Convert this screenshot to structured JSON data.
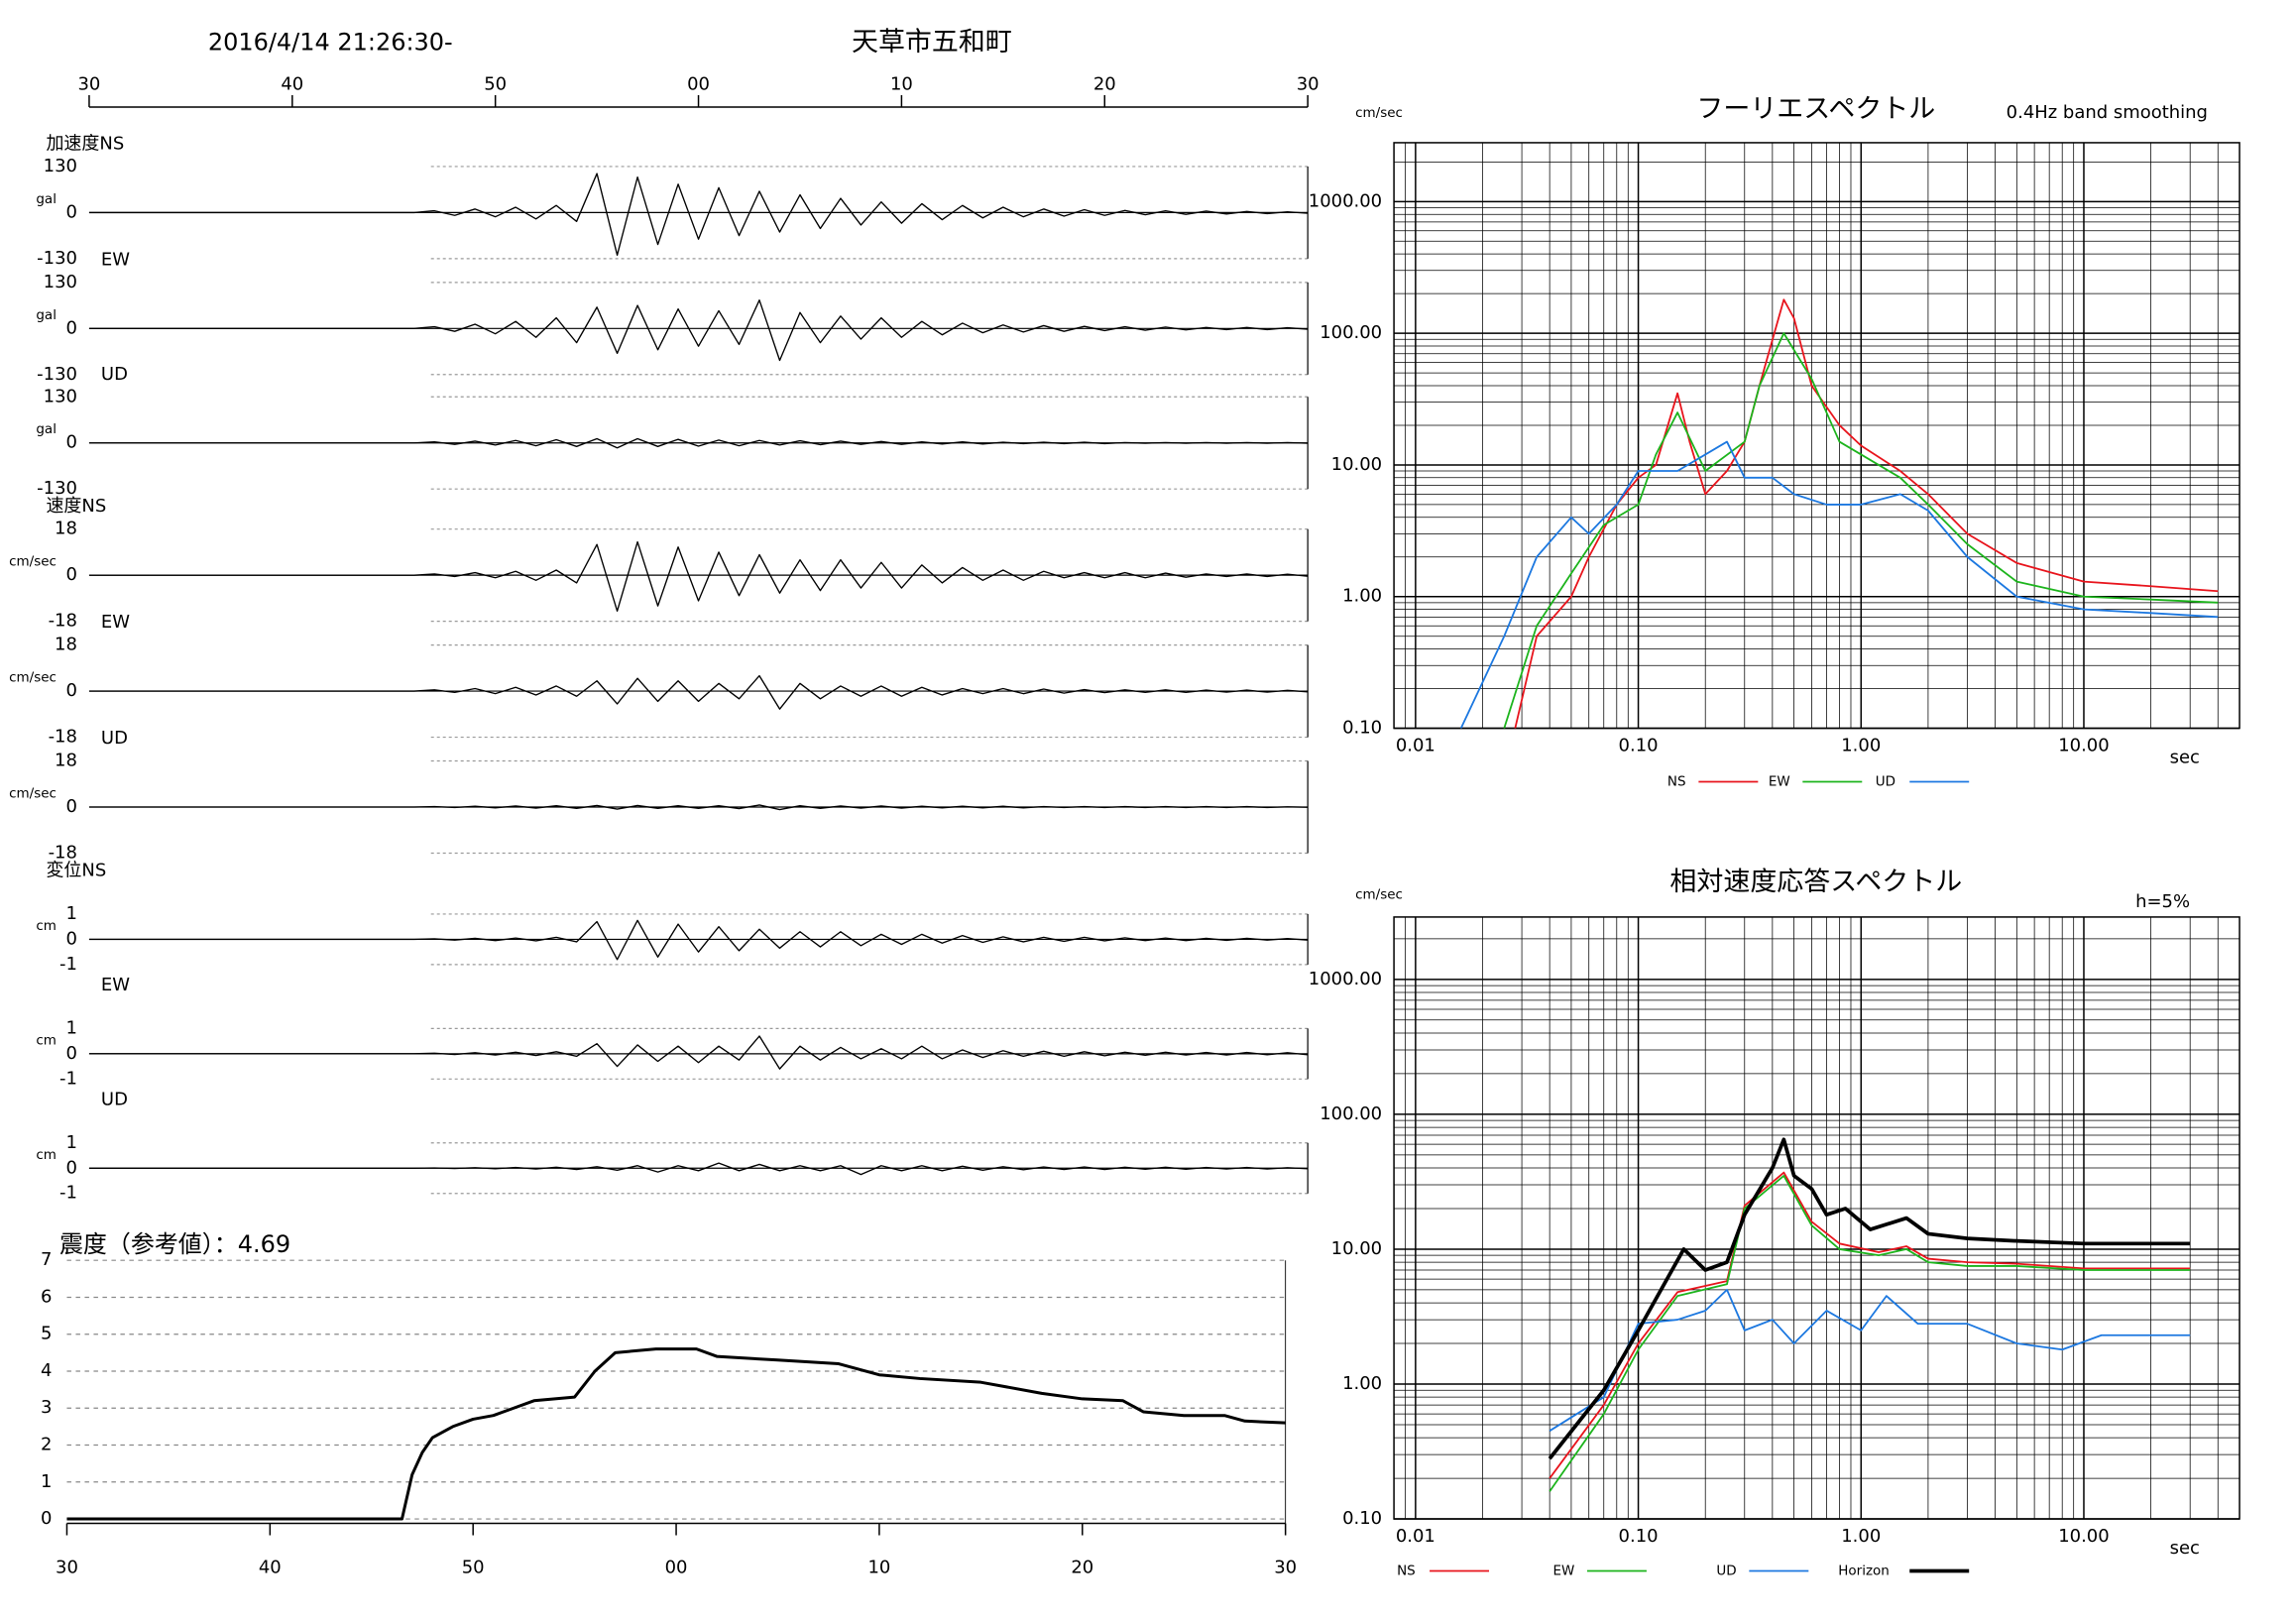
{
  "chart_data": [
    {
      "type": "waveform",
      "title": "天草市五和町",
      "subtitle": "2016/4/14 21:26:30-",
      "xlim": [
        0,
        60
      ],
      "xticks": [
        {
          "value": 0,
          "label": "30"
        },
        {
          "value": 10,
          "label": "40"
        },
        {
          "value": 20,
          "label": "50"
        },
        {
          "value": 30,
          "label": "00"
        },
        {
          "value": 40,
          "label": "10"
        },
        {
          "value": 50,
          "label": "20"
        },
        {
          "value": 60,
          "label": "30"
        }
      ],
      "x": [
        0,
        16,
        17,
        18,
        19,
        20,
        21,
        22,
        23,
        24,
        25,
        26,
        27,
        28,
        29,
        30,
        31,
        32,
        33,
        34,
        35,
        36,
        37,
        38,
        39,
        40,
        41,
        42,
        43,
        44,
        45,
        46,
        47,
        48,
        49,
        50,
        51,
        52,
        53,
        54,
        55,
        56,
        57,
        58,
        59,
        60
      ],
      "panels": [
        {
          "name": "加速度NS",
          "unit": "gal",
          "ylim": [
            -130,
            130
          ],
          "yticks": [
            -130,
            0,
            130
          ],
          "values": [
            0,
            0,
            5,
            -8,
            10,
            -12,
            15,
            -18,
            20,
            -25,
            110,
            -120,
            100,
            -90,
            80,
            -75,
            70,
            -65,
            60,
            -55,
            50,
            -45,
            40,
            -35,
            30,
            -30,
            25,
            -20,
            20,
            -15,
            15,
            -12,
            10,
            -10,
            8,
            -8,
            6,
            -6,
            5,
            -5,
            4,
            -4,
            3,
            -3,
            2,
            -2
          ]
        },
        {
          "name": "EW",
          "unit": "gal",
          "ylim": [
            -130,
            130
          ],
          "yticks": [
            -130,
            0,
            130
          ],
          "values": [
            0,
            0,
            5,
            -8,
            12,
            -15,
            20,
            -25,
            30,
            -40,
            60,
            -70,
            65,
            -60,
            55,
            -50,
            50,
            -45,
            80,
            -90,
            45,
            -40,
            35,
            -30,
            30,
            -25,
            20,
            -18,
            15,
            -12,
            10,
            -10,
            8,
            -8,
            6,
            -6,
            5,
            -5,
            4,
            -4,
            3,
            -3,
            3,
            -3,
            2,
            -2
          ]
        },
        {
          "name": "UD",
          "unit": "gal",
          "ylim": [
            -130,
            130
          ],
          "yticks": [
            -130,
            0,
            130
          ],
          "values": [
            0,
            0,
            3,
            -4,
            5,
            -6,
            7,
            -8,
            9,
            -10,
            12,
            -14,
            12,
            -10,
            10,
            -9,
            8,
            -8,
            7,
            -6,
            6,
            -5,
            5,
            -4,
            4,
            -4,
            3,
            -3,
            3,
            -3,
            2,
            -2,
            2,
            -2,
            2,
            -2,
            1,
            -1,
            1,
            -1,
            1,
            -1,
            1,
            -1,
            1,
            -1
          ]
        },
        {
          "name": "速度NS",
          "unit": "cm/sec",
          "ylim": [
            -18,
            18
          ],
          "yticks": [
            -18,
            0,
            18
          ],
          "values": [
            0,
            0,
            0.5,
            -0.5,
            1,
            -1,
            1.5,
            -2,
            2,
            -3,
            12,
            -14,
            13,
            -12,
            11,
            -10,
            9,
            -8,
            8,
            -7,
            6,
            -6,
            6,
            -5,
            5,
            -5,
            4,
            -3,
            3,
            -2,
            2,
            -2,
            1.5,
            -1,
            1,
            -1,
            1,
            -1,
            0.8,
            -0.8,
            0.5,
            -0.5,
            0.5,
            -0.5,
            0.4,
            -0.4
          ]
        },
        {
          "name": "EW",
          "unit": "cm/sec",
          "ylim": [
            -18,
            18
          ],
          "yticks": [
            -18,
            0,
            18
          ],
          "values": [
            0,
            0,
            0.5,
            -0.5,
            1,
            -1,
            1.5,
            -1.5,
            2,
            -2,
            4,
            -5,
            5,
            -4,
            4,
            -4,
            3,
            -3,
            6,
            -7,
            3,
            -3,
            2,
            -2,
            2,
            -2,
            1.5,
            -1.5,
            1,
            -1,
            1,
            -1,
            0.8,
            -0.8,
            0.6,
            -0.6,
            0.5,
            -0.5,
            0.5,
            -0.5,
            0.4,
            -0.4,
            0.4,
            -0.4,
            0.3,
            -0.3
          ]
        },
        {
          "name": "UD",
          "unit": "cm/sec",
          "ylim": [
            -18,
            18
          ],
          "yticks": [
            -18,
            0,
            18
          ],
          "values": [
            0,
            0,
            0.2,
            -0.2,
            0.3,
            -0.3,
            0.4,
            -0.4,
            0.5,
            -0.5,
            0.6,
            -0.8,
            0.6,
            -0.5,
            0.5,
            -0.5,
            0.5,
            -0.6,
            0.8,
            -1,
            0.5,
            -0.5,
            0.4,
            -0.4,
            0.4,
            -0.4,
            0.3,
            -0.3,
            0.3,
            -0.3,
            0.3,
            -0.3,
            0.2,
            -0.2,
            0.2,
            -0.2,
            0.2,
            -0.2,
            0.2,
            -0.2,
            0.2,
            -0.2,
            0.2,
            -0.2,
            0.1,
            -0.1
          ]
        },
        {
          "name": "変位NS",
          "unit": "cm",
          "ylim": [
            -1,
            1
          ],
          "yticks": [
            -1,
            0,
            1
          ],
          "values": [
            0,
            0,
            0.02,
            -0.03,
            0.04,
            -0.05,
            0.05,
            -0.06,
            0.08,
            -0.1,
            0.7,
            -0.8,
            0.75,
            -0.7,
            0.6,
            -0.5,
            0.5,
            -0.45,
            0.4,
            -0.35,
            0.3,
            -0.3,
            0.3,
            -0.25,
            0.2,
            -0.2,
            0.2,
            -0.15,
            0.15,
            -0.12,
            0.1,
            -0.1,
            0.08,
            -0.08,
            0.08,
            -0.06,
            0.06,
            -0.05,
            0.05,
            -0.05,
            0.04,
            -0.04,
            0.04,
            -0.03,
            0.03,
            -0.03
          ]
        },
        {
          "name": "EW",
          "unit": "cm",
          "ylim": [
            -1,
            1
          ],
          "yticks": [
            -1,
            0,
            1
          ],
          "values": [
            0,
            0,
            0.02,
            -0.03,
            0.04,
            -0.05,
            0.06,
            -0.07,
            0.08,
            -0.1,
            0.4,
            -0.5,
            0.35,
            -0.3,
            0.3,
            -0.35,
            0.3,
            -0.25,
            0.7,
            -0.6,
            0.3,
            -0.25,
            0.25,
            -0.2,
            0.2,
            -0.2,
            0.3,
            -0.2,
            0.15,
            -0.15,
            0.12,
            -0.1,
            0.1,
            -0.1,
            0.08,
            -0.08,
            0.06,
            -0.06,
            0.06,
            -0.05,
            0.05,
            -0.05,
            0.05,
            -0.04,
            0.04,
            -0.04
          ]
        },
        {
          "name": "UD",
          "unit": "cm",
          "ylim": [
            -1,
            1
          ],
          "yticks": [
            -1,
            0,
            1
          ],
          "values": [
            0,
            0,
            0.01,
            -0.01,
            0.02,
            -0.02,
            0.03,
            -0.03,
            0.04,
            -0.05,
            0.06,
            -0.08,
            0.1,
            -0.15,
            0.1,
            -0.1,
            0.2,
            -0.1,
            0.15,
            -0.1,
            0.1,
            -0.1,
            0.1,
            -0.25,
            0.1,
            -0.1,
            0.1,
            -0.1,
            0.08,
            -0.08,
            0.06,
            -0.06,
            0.05,
            -0.05,
            0.05,
            -0.05,
            0.04,
            -0.04,
            0.04,
            -0.04,
            0.03,
            -0.03,
            0.03,
            -0.03,
            0.02,
            -0.02
          ]
        }
      ]
    },
    {
      "type": "line",
      "title": "震度（参考値）：4.69",
      "color": "#000000",
      "xlim": [
        0,
        60
      ],
      "xticks": [
        {
          "value": 0,
          "label": "30"
        },
        {
          "value": 10,
          "label": "40"
        },
        {
          "value": 20,
          "label": "50"
        },
        {
          "value": 30,
          "label": "00"
        },
        {
          "value": 40,
          "label": "10"
        },
        {
          "value": 50,
          "label": "20"
        },
        {
          "value": 60,
          "label": "30"
        }
      ],
      "ylim": [
        0,
        7
      ],
      "yticks": [
        0,
        1,
        2,
        3,
        4,
        5,
        6,
        7
      ],
      "grid": true,
      "x": [
        0,
        16.5,
        17,
        17.5,
        18,
        19,
        20,
        21,
        22,
        23,
        25,
        26,
        27,
        29,
        31,
        32,
        35,
        38,
        40,
        42,
        45,
        48,
        50,
        52,
        53,
        55,
        57,
        58,
        60
      ],
      "values": [
        0,
        0,
        1.2,
        1.8,
        2.2,
        2.5,
        2.7,
        2.8,
        3.0,
        3.2,
        3.3,
        4.0,
        4.5,
        4.6,
        4.6,
        4.4,
        4.3,
        4.2,
        3.9,
        3.8,
        3.7,
        3.4,
        3.25,
        3.2,
        2.9,
        2.8,
        2.8,
        2.65,
        2.6
      ]
    },
    {
      "type": "line",
      "xscale": "log",
      "yscale": "log",
      "title": "フーリエスペクトル",
      "subtitle": "0.4Hz band smoothing",
      "ylabel": "cm/sec",
      "xlabel": "sec",
      "grid": true,
      "legend": "bottom",
      "xlim": [
        0.008,
        50
      ],
      "ylim": [
        0.1,
        2800
      ],
      "xticks": [
        {
          "value": 0.01,
          "label": "0.01"
        },
        {
          "value": 0.1,
          "label": "0.10"
        },
        {
          "value": 1,
          "label": "1.00"
        },
        {
          "value": 10,
          "label": "10.00"
        }
      ],
      "yticks": [
        {
          "value": 0.1,
          "label": "0.10"
        },
        {
          "value": 1,
          "label": "1.00"
        },
        {
          "value": 10,
          "label": "10.00"
        },
        {
          "value": 100,
          "label": "100.00"
        },
        {
          "value": 1000,
          "label": "1000.00"
        }
      ],
      "series": [
        {
          "name": "NS",
          "color": "#e8141c",
          "line_width": 1.2,
          "x": [
            0.028,
            0.035,
            0.05,
            0.06,
            0.08,
            0.1,
            0.12,
            0.15,
            0.17,
            0.2,
            0.25,
            0.3,
            0.35,
            0.45,
            0.5,
            0.6,
            0.8,
            1,
            1.5,
            2,
            3,
            5,
            10,
            20,
            40
          ],
          "values": [
            0.1,
            0.5,
            1.0,
            2,
            5,
            8,
            10,
            35,
            15,
            6,
            9,
            15,
            40,
            180,
            130,
            40,
            20,
            14,
            9,
            6,
            3,
            1.8,
            1.3,
            1.2,
            1.1
          ]
        },
        {
          "name": "EW",
          "color": "#1cb41c",
          "line_width": 1.2,
          "x": [
            0.025,
            0.035,
            0.05,
            0.07,
            0.1,
            0.12,
            0.15,
            0.2,
            0.3,
            0.35,
            0.45,
            0.6,
            0.8,
            1,
            1.5,
            2,
            3,
            5,
            10,
            20,
            40
          ],
          "values": [
            0.1,
            0.6,
            1.5,
            3.5,
            5,
            12,
            25,
            9,
            15,
            40,
            100,
            45,
            15,
            12,
            8,
            5,
            2.5,
            1.3,
            1,
            0.95,
            0.9
          ]
        },
        {
          "name": "UD",
          "color": "#1c78e0",
          "line_width": 1.2,
          "x": [
            0.016,
            0.025,
            0.035,
            0.05,
            0.06,
            0.08,
            0.1,
            0.15,
            0.2,
            0.25,
            0.3,
            0.4,
            0.5,
            0.7,
            1,
            1.5,
            2,
            3,
            5,
            10,
            20,
            40
          ],
          "values": [
            0.1,
            0.5,
            2,
            4,
            3,
            5,
            9,
            9,
            12,
            15,
            8,
            8,
            6,
            5,
            5,
            6,
            4.5,
            2,
            1,
            0.8,
            0.75,
            0.7
          ]
        }
      ]
    },
    {
      "type": "line",
      "xscale": "log",
      "yscale": "log",
      "title": "相対速度応答スペクトル",
      "subtitle": "h=5%",
      "ylabel": "cm/sec",
      "xlabel": "sec",
      "grid": true,
      "legend": "bottom",
      "xlim": [
        0.008,
        50
      ],
      "ylim": [
        0.1,
        2900
      ],
      "xticks": [
        {
          "value": 0.01,
          "label": "0.01"
        },
        {
          "value": 0.1,
          "label": "0.10"
        },
        {
          "value": 1,
          "label": "1.00"
        },
        {
          "value": 10,
          "label": "10.00"
        }
      ],
      "yticks": [
        {
          "value": 0.1,
          "label": "0.10"
        },
        {
          "value": 1,
          "label": "1.00"
        },
        {
          "value": 10,
          "label": "10.00"
        },
        {
          "value": 100,
          "label": "100.00"
        },
        {
          "value": 1000,
          "label": "1000.00"
        }
      ],
      "series": [
        {
          "name": "NS",
          "color": "#e8141c",
          "line_width": 1.2,
          "x": [
            0.04,
            0.07,
            0.1,
            0.15,
            0.25,
            0.3,
            0.45,
            0.6,
            0.8,
            1.2,
            1.6,
            2,
            3,
            5,
            10,
            30
          ],
          "values": [
            0.2,
            0.7,
            2,
            4.8,
            5.8,
            21,
            37,
            16,
            11,
            9.5,
            10.5,
            8.5,
            8,
            7.8,
            7.2,
            7.2
          ]
        },
        {
          "name": "EW",
          "color": "#1cb41c",
          "line_width": 1.2,
          "x": [
            0.04,
            0.07,
            0.1,
            0.15,
            0.25,
            0.3,
            0.45,
            0.6,
            0.8,
            1.2,
            1.6,
            2,
            3,
            5,
            10,
            30
          ],
          "values": [
            0.16,
            0.6,
            1.8,
            4.5,
            5.5,
            20,
            35,
            15,
            10,
            9,
            10,
            8,
            7.5,
            7.5,
            7,
            7
          ]
        },
        {
          "name": "UD",
          "color": "#1c78e0",
          "line_width": 1.2,
          "x": [
            0.04,
            0.07,
            0.1,
            0.15,
            0.2,
            0.25,
            0.3,
            0.4,
            0.5,
            0.7,
            1,
            1.3,
            1.8,
            3,
            5,
            8,
            12,
            30
          ],
          "values": [
            0.45,
            0.8,
            2.8,
            3,
            3.5,
            5,
            2.5,
            3,
            2,
            3.5,
            2.5,
            4.5,
            2.8,
            2.8,
            2,
            1.8,
            2.3,
            2.3
          ]
        },
        {
          "name": "Horizon",
          "color": "#000000",
          "line_width": 2.5,
          "x": [
            0.04,
            0.07,
            0.1,
            0.16,
            0.2,
            0.25,
            0.3,
            0.4,
            0.45,
            0.5,
            0.6,
            0.7,
            0.85,
            1.1,
            1.6,
            2,
            3,
            5,
            10,
            30
          ],
          "values": [
            0.28,
            0.9,
            2.5,
            10,
            7,
            8,
            18,
            40,
            65,
            35,
            28,
            18,
            20,
            14,
            17,
            13,
            12,
            11.5,
            11,
            11
          ]
        }
      ]
    }
  ]
}
